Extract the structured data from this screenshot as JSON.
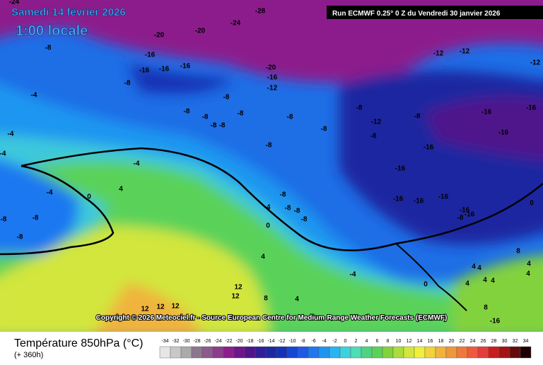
{
  "header": {
    "date": "Samedi 14 février 2026",
    "time": "1:00 locale",
    "run": "Run ECMWF 0.25° 0 Z du Vendredi 30 janvier 2026"
  },
  "map_labels": [
    "-24",
    "-28",
    "-24",
    "-20",
    "-20",
    "-8",
    "-16",
    "-16",
    "-16",
    "-16",
    "-20",
    "-16",
    "-12",
    "-8",
    "-4",
    "-12",
    "-12",
    "-12",
    "-8",
    "-8",
    "-8",
    "-8",
    "-8",
    "-8",
    "-8",
    "-8",
    "-12",
    "-8",
    "-16",
    "-16",
    "-4",
    "-8",
    "-8",
    "-8",
    "-16",
    "-16",
    "-4",
    "-4",
    "-16",
    "-4",
    "4",
    "0",
    "-8",
    "-16",
    "-16",
    "-16",
    "0",
    "-8",
    "-8",
    "-4",
    "-8",
    "-8",
    "-8",
    "-16",
    "-8",
    "-16",
    "-8",
    "0",
    "8",
    "4",
    "4",
    "4",
    "4",
    "4",
    "-4",
    "0",
    "4",
    "4",
    "4",
    "12",
    "12",
    "8",
    "4",
    "12",
    "12",
    "12",
    "8",
    "-16",
    "4"
  ],
  "copyright": "Copyright © 2026 Meteociel.fr - Source European Centre for Medium-Range Weather Forecasts (ECMWF)",
  "legend": {
    "title": "Température 850hPa (°C)",
    "subtitle": "(+ 360h)",
    "values": [
      -34,
      -32,
      -30,
      -28,
      -26,
      -24,
      -22,
      -20,
      -18,
      -16,
      -14,
      -12,
      -10,
      -8,
      -6,
      -4,
      -2,
      0,
      2,
      4,
      6,
      8,
      10,
      12,
      14,
      16,
      18,
      20,
      22,
      24,
      26,
      28,
      30,
      32,
      34
    ],
    "colors": [
      "#e6e6e6",
      "#c8c8c8",
      "#aaaaaa",
      "#8c788c",
      "#8c5a8c",
      "#8c3c8c",
      "#8c1e8c",
      "#6e148c",
      "#50148c",
      "#321e96",
      "#1e28a0",
      "#1432b4",
      "#1446d2",
      "#1e5ae6",
      "#1e78f0",
      "#1e96f0",
      "#28b4f0",
      "#3cd2dc",
      "#50dcb4",
      "#50d282",
      "#5ad25a",
      "#82d23c",
      "#aadc3c",
      "#d2e63c",
      "#f0f03c",
      "#f0d23c",
      "#f0b43c",
      "#f0963c",
      "#f0783c",
      "#f05a3c",
      "#e63c3c",
      "#c81e1e",
      "#a01414",
      "#640a0a",
      "#1e0000"
    ]
  }
}
